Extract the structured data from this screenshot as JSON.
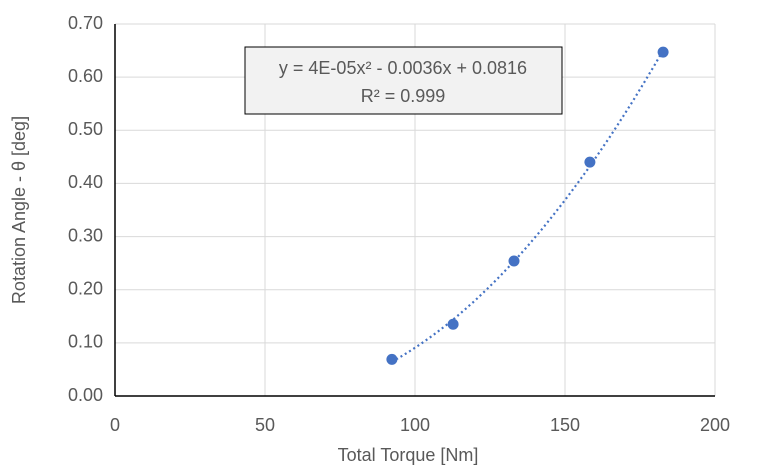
{
  "chart_data": {
    "type": "scatter",
    "x_label": "Total Torque [Nm]",
    "y_label": "Rotation Angle - θ [deg]",
    "series": [
      {
        "name": "Rotation Angle",
        "color": "#4472c4",
        "x": [
          92.3,
          112.7,
          133,
          158.3,
          182.7
        ],
        "values": [
          0.069,
          0.135,
          0.254,
          0.44,
          0.647
        ]
      }
    ],
    "trendline": {
      "type": "polynomial",
      "equation": "y = 4E-05x² - 0.0036x + 0.0816",
      "r_squared": "R² = 0.999"
    },
    "xlim": [
      0,
      200
    ],
    "xticks": [
      0,
      50,
      100,
      150,
      200
    ],
    "ylim": [
      0,
      0.7
    ],
    "yticks": [
      {
        "value": 0,
        "label": "0.00"
      },
      {
        "value": 0.1,
        "label": "0.10"
      },
      {
        "value": 0.2,
        "label": "0.20"
      },
      {
        "value": 0.3,
        "label": "0.30"
      },
      {
        "value": 0.4,
        "label": "0.40"
      },
      {
        "value": 0.5,
        "label": "0.50"
      },
      {
        "value": 0.6,
        "label": "0.60"
      },
      {
        "value": 0.7,
        "label": "0.70"
      }
    ],
    "grid": true
  }
}
